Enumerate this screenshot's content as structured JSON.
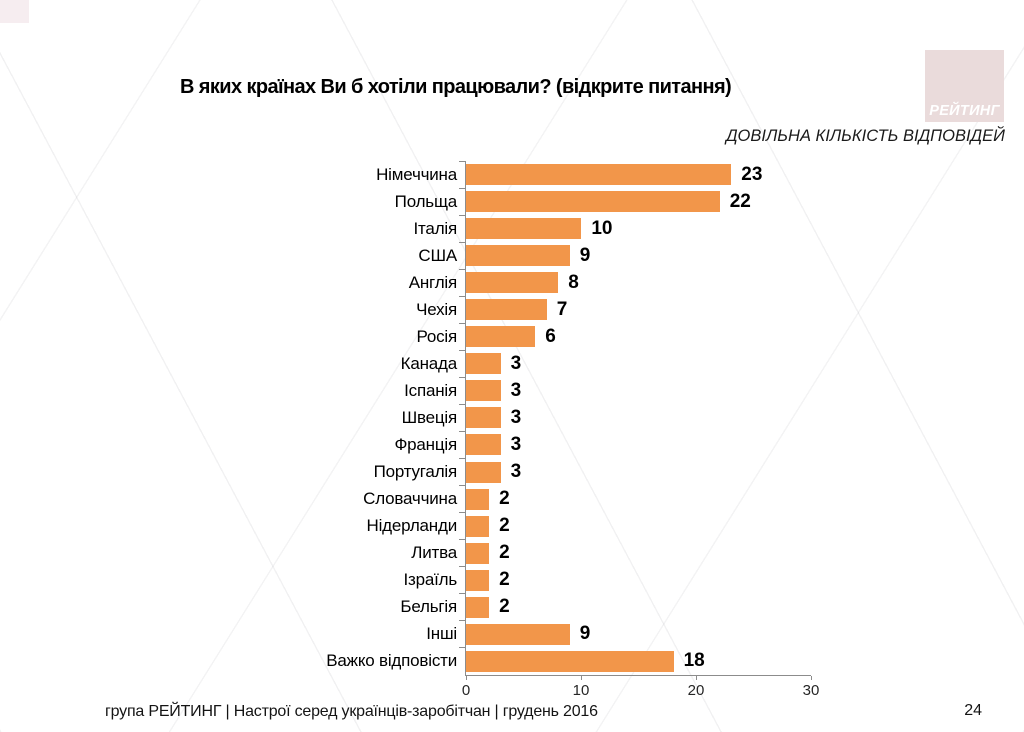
{
  "slide": {
    "title": "В яких країнах Ви б хотіли працювали? (відкрите питання)",
    "subtitle": "ДОВІЛЬНА КІЛЬКІСТЬ ВІДПОВІДЕЙ",
    "logo_text": "РЕЙТИНГ",
    "footer": "група РЕЙТИНГ |  Настрої серед українців-заробітчан  |  грудень 2016",
    "page_number": "24"
  },
  "colors": {
    "bar": "#F2964A",
    "logo_background": "#EADBDB",
    "logo_text": "#FFFFFF",
    "axis": "#8C8C8C"
  },
  "chart_data": {
    "type": "bar",
    "orientation": "horizontal",
    "title": "В яких країнах Ви б хотіли працювали? (відкрите питання)",
    "subtitle": "ДОВІЛЬНА КІЛЬКІСТЬ ВІДПОВІДЕЙ",
    "categories": [
      "Німеччина",
      "Польща",
      "Італія",
      "США",
      "Англія",
      "Чехія",
      "Росія",
      "Канада",
      "Іспанія",
      "Швеція",
      "Франція",
      "Португалія",
      "Словаччина",
      "Нідерланди",
      "Литва",
      "Ізраїль",
      "Бельгія",
      "Інші",
      "Важко відповісти"
    ],
    "values": [
      23,
      22,
      10,
      9,
      8,
      7,
      6,
      3,
      3,
      3,
      3,
      3,
      2,
      2,
      2,
      2,
      2,
      9,
      18
    ],
    "xlabel": "",
    "ylabel": "",
    "xlim": [
      0,
      30
    ],
    "x_ticks": [
      0,
      10,
      20,
      30
    ],
    "grid": false,
    "legend": false,
    "bar_color": "#F2964A",
    "value_labels_shown": true
  }
}
